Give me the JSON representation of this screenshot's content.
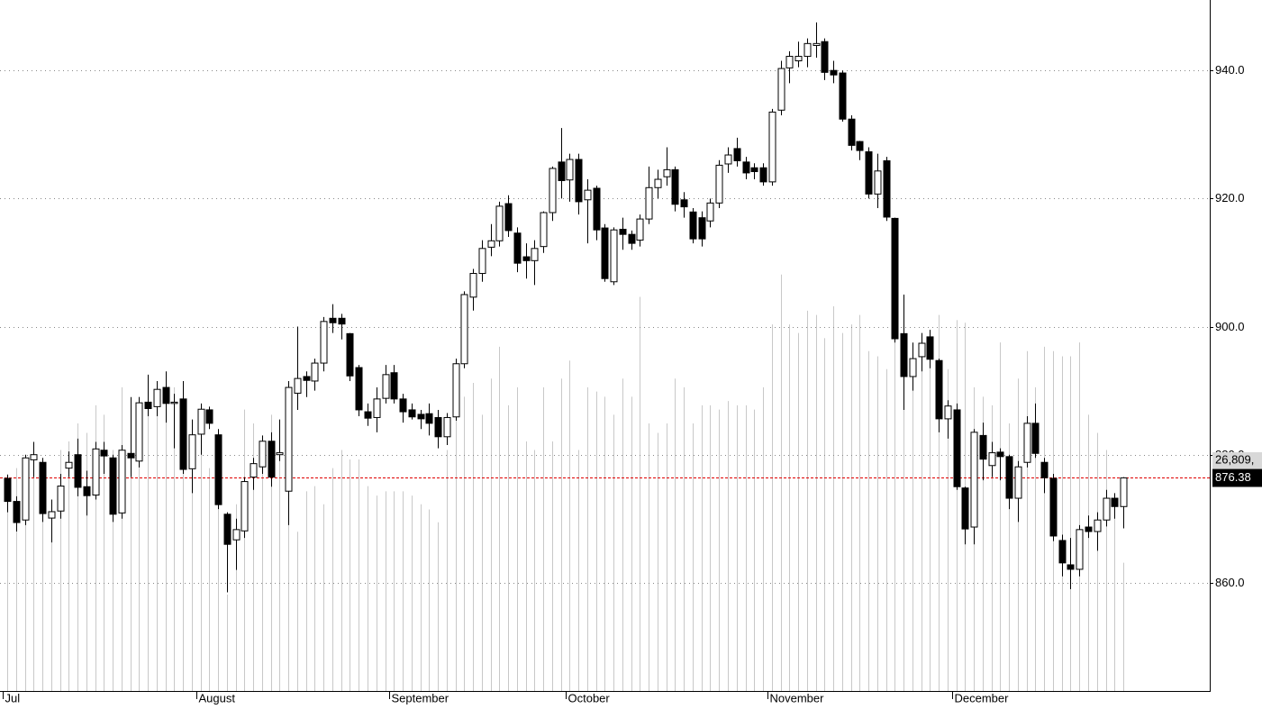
{
  "chart_data": {
    "type": "candlestick",
    "categories": [
      "Jul",
      null,
      null,
      null,
      null,
      null,
      null,
      null,
      null,
      null,
      null,
      null,
      null,
      null,
      null,
      null,
      null,
      null,
      null,
      null,
      null,
      null,
      "August",
      null,
      null,
      null,
      null,
      null,
      null,
      null,
      null,
      null,
      null,
      null,
      null,
      null,
      null,
      null,
      null,
      null,
      null,
      null,
      null,
      null,
      "September",
      null,
      null,
      null,
      null,
      null,
      null,
      null,
      null,
      null,
      null,
      null,
      null,
      null,
      null,
      null,
      null,
      null,
      null,
      null,
      "October",
      null,
      null,
      null,
      null,
      null,
      null,
      null,
      null,
      null,
      null,
      null,
      null,
      null,
      null,
      null,
      null,
      null,
      null,
      null,
      null,
      null,
      null,
      "November",
      null,
      null,
      null,
      null,
      null,
      null,
      null,
      null,
      null,
      null,
      null,
      null,
      null,
      null,
      null,
      null,
      null,
      null,
      null,
      null,
      "December",
      null,
      null,
      null,
      null,
      null,
      null,
      null,
      null,
      null,
      null,
      null,
      null,
      null,
      null,
      null,
      null,
      null,
      null,
      null
    ],
    "ohlc": [
      [
        876.3,
        876.9,
        871,
        872.7
      ],
      [
        872.7,
        873.5,
        868,
        869.4
      ],
      [
        869.8,
        880,
        869,
        879.5
      ],
      [
        879.2,
        882,
        876.5,
        880
      ],
      [
        878.8,
        879.5,
        869.5,
        870.8
      ],
      [
        870.1,
        873,
        866.3,
        871.1
      ],
      [
        871.2,
        877,
        870,
        875.1
      ],
      [
        877.9,
        880.5,
        876.5,
        878.8
      ],
      [
        880,
        882.5,
        873.5,
        874.9
      ],
      [
        875,
        877.5,
        870.5,
        873.6
      ],
      [
        873.7,
        882,
        873,
        880.9
      ],
      [
        880.7,
        882,
        877,
        879.8
      ],
      [
        879.5,
        880,
        869.5,
        870.7
      ],
      [
        870.9,
        881.5,
        870,
        880.7
      ],
      [
        880.2,
        889,
        876.5,
        879.5
      ],
      [
        879,
        889,
        878,
        888.1
      ],
      [
        888.2,
        892.5,
        886,
        887.2
      ],
      [
        887.5,
        891.5,
        886,
        890.2
      ],
      [
        890.5,
        893,
        885,
        888
      ],
      [
        888,
        889.5,
        881,
        888.2
      ],
      [
        888.7,
        891.5,
        877,
        877.7
      ],
      [
        877.8,
        885.5,
        874,
        883.1
      ],
      [
        883.2,
        888,
        880,
        887.1
      ],
      [
        887,
        887.5,
        884,
        884.9
      ],
      [
        883.1,
        884,
        871.5,
        872.2
      ],
      [
        870.7,
        871,
        858.5,
        866
      ],
      [
        866.7,
        870,
        862,
        868.3
      ],
      [
        868.1,
        876.5,
        867,
        875.8
      ],
      [
        876.5,
        879.5,
        874.5,
        878.6
      ],
      [
        878.1,
        883,
        877,
        882.1
      ],
      [
        882.1,
        883.5,
        875,
        876.5
      ],
      [
        880,
        885.5,
        879,
        880.3
      ],
      [
        874.3,
        891.5,
        869,
        890.5
      ],
      [
        889.6,
        900,
        887,
        891.9
      ],
      [
        892.2,
        893,
        889,
        891.6
      ],
      [
        891.5,
        895,
        890,
        894.3
      ],
      [
        894.3,
        901.5,
        893,
        900.8
      ],
      [
        901.3,
        903.5,
        899,
        900.6
      ],
      [
        901.3,
        902,
        898,
        900.4
      ],
      [
        898.9,
        899,
        891.5,
        892.3
      ],
      [
        893.6,
        894,
        886,
        887
      ],
      [
        886.7,
        888,
        884.5,
        885.7
      ],
      [
        885.8,
        890.5,
        883.5,
        888.7
      ],
      [
        888.8,
        894,
        888,
        892.5
      ],
      [
        892.8,
        894,
        888,
        888.7
      ],
      [
        888.7,
        889.5,
        885,
        886.7
      ],
      [
        887,
        888,
        885.5,
        885.9
      ],
      [
        886.3,
        887,
        884,
        885.6
      ],
      [
        886.4,
        888,
        883,
        884.9
      ],
      [
        885.8,
        887,
        881,
        882.8
      ],
      [
        882.8,
        886.5,
        881.5,
        885.8
      ],
      [
        885.9,
        895,
        885.3,
        894.2
      ],
      [
        894.2,
        905.5,
        893.5,
        905
      ],
      [
        904.6,
        909,
        902.5,
        908.3
      ],
      [
        908.3,
        913.5,
        907,
        912.2
      ],
      [
        912.4,
        916,
        911,
        913.4
      ],
      [
        913.4,
        919.5,
        912.5,
        918.8
      ],
      [
        919.2,
        920.5,
        914,
        915
      ],
      [
        914.6,
        915.5,
        908.5,
        909.9
      ],
      [
        910.9,
        913,
        907.5,
        910.3
      ],
      [
        910.3,
        913.5,
        906.5,
        912.2
      ],
      [
        912.5,
        918,
        911.5,
        917.8
      ],
      [
        917.8,
        925,
        916.5,
        924.7
      ],
      [
        925.7,
        931,
        920,
        922.8
      ],
      [
        922.9,
        927,
        919.5,
        926.1
      ],
      [
        926.1,
        927,
        917.5,
        919.5
      ],
      [
        919.8,
        923,
        913,
        921.3
      ],
      [
        921.6,
        922,
        913.5,
        915.1
      ],
      [
        915.4,
        916,
        907,
        907.5
      ],
      [
        907,
        915.5,
        906.5,
        915.1
      ],
      [
        915.2,
        917,
        912,
        914.4
      ],
      [
        914.4,
        915,
        912,
        913
      ],
      [
        913.5,
        917.5,
        912.5,
        916.8
      ],
      [
        916.8,
        925,
        916,
        921.7
      ],
      [
        921.7,
        924.5,
        920,
        923
      ],
      [
        923.4,
        928,
        922,
        924.5
      ],
      [
        924.5,
        925,
        918,
        919.1
      ],
      [
        919.8,
        921,
        917,
        918.7
      ],
      [
        917.9,
        918.5,
        913,
        913.7
      ],
      [
        917,
        918,
        912.5,
        913.7
      ],
      [
        916.5,
        920,
        915.5,
        919.3
      ],
      [
        919.3,
        926,
        918.5,
        925.2
      ],
      [
        925.4,
        928,
        924,
        926.8
      ],
      [
        927.8,
        929.5,
        925,
        925.9
      ],
      [
        925.7,
        926.5,
        923,
        924
      ],
      [
        924.8,
        925.5,
        923,
        924.2
      ],
      [
        924.8,
        925.5,
        922,
        922.6
      ],
      [
        922.6,
        934,
        922,
        933.5
      ],
      [
        933.8,
        941.5,
        933,
        940.3
      ],
      [
        940.4,
        943,
        938,
        942.2
      ],
      [
        941.5,
        944.5,
        940.5,
        942.2
      ],
      [
        942.2,
        945,
        940.5,
        944.2
      ],
      [
        943.9,
        947.5,
        942,
        944.2
      ],
      [
        944.5,
        945,
        938.5,
        939.7
      ],
      [
        940,
        941.5,
        938,
        939.3
      ],
      [
        939.6,
        940,
        932,
        932.4
      ],
      [
        932.4,
        933,
        927.5,
        928.3
      ],
      [
        928.9,
        929,
        926,
        927.5
      ],
      [
        927.3,
        928,
        920,
        920.7
      ],
      [
        920.7,
        927,
        918.5,
        924.3
      ],
      [
        925.9,
        926.5,
        916.5,
        917.1
      ],
      [
        916.9,
        917,
        897.5,
        898.1
      ],
      [
        898.9,
        905,
        887,
        892.2
      ],
      [
        892.2,
        897.5,
        890,
        895
      ],
      [
        895.3,
        899,
        893,
        897.4
      ],
      [
        898.4,
        899.5,
        893.5,
        894.9
      ],
      [
        894.7,
        895,
        883.5,
        885.6
      ],
      [
        885.6,
        888.5,
        882.5,
        887.6
      ],
      [
        887,
        888,
        874.5,
        875
      ],
      [
        874.8,
        875,
        866,
        868.4
      ],
      [
        868.7,
        884,
        866,
        883.5
      ],
      [
        883,
        885,
        876,
        879.3
      ],
      [
        878.3,
        882,
        876.5,
        880.3
      ],
      [
        880.4,
        881,
        876,
        879.7
      ],
      [
        879.7,
        880,
        871.5,
        873.2
      ],
      [
        873.2,
        879,
        869.5,
        878.1
      ],
      [
        878.8,
        886,
        878,
        884.9
      ],
      [
        884.9,
        888,
        879.5,
        880.2
      ],
      [
        878.8,
        879.5,
        874,
        876.4
      ],
      [
        876.3,
        877,
        866.5,
        867.3
      ],
      [
        866.6,
        867.5,
        861,
        863.1
      ],
      [
        862.8,
        867,
        859,
        862.1
      ],
      [
        862.1,
        869,
        861,
        868.3
      ],
      [
        868.7,
        870.5,
        867,
        868
      ],
      [
        868,
        871,
        865,
        869.8
      ],
      [
        869.8,
        874.5,
        868.8,
        873.2
      ],
      [
        873.2,
        874,
        870,
        871.9
      ],
      [
        871.9,
        876.5,
        868.5,
        876.38
      ]
    ],
    "volume": [
      24.8,
      25.9,
      25.3,
      26.9,
      25.9,
      21.7,
      28.0,
      29.0,
      31.1,
      30.0,
      33.2,
      32.1,
      28.0,
      35.3,
      31.1,
      34.2,
      36.3,
      35.8,
      34.2,
      35.3,
      28.0,
      30.0,
      31.1,
      25.9,
      24.8,
      11.2,
      21.7,
      32.7,
      31.1,
      25.9,
      32.1,
      28.0,
      25.9,
      18.5,
      23.2,
      23.8,
      21.7,
      25.9,
      28.0,
      26.9,
      26.9,
      23.8,
      22.7,
      23.2,
      23.2,
      23.2,
      22.7,
      21.7,
      21.1,
      19.6,
      28.0,
      33.2,
      34.2,
      35.8,
      32.1,
      36.3,
      40.0,
      33.2,
      35.3,
      29.0,
      28.0,
      35.3,
      29.0,
      36.3,
      38.4,
      28.0,
      35.3,
      34.8,
      34.2,
      32.1,
      36.3,
      34.2,
      45.8,
      31.1,
      30.0,
      31.1,
      36.3,
      35.3,
      31.1,
      33.2,
      33.2,
      32.7,
      33.7,
      33.2,
      33.2,
      32.7,
      35.3,
      42.6,
      48.4,
      42.6,
      41.6,
      44.2,
      43.7,
      41.0,
      44.7,
      41.6,
      42.6,
      43.7,
      39.5,
      38.9,
      37.4,
      41.6,
      36.9,
      36.3,
      38.4,
      41.6,
      43.7,
      37.4,
      43.1,
      42.8,
      35.3,
      34.2,
      33.2,
      40.5,
      31.1,
      36.3,
      39.5,
      35.3,
      40.0,
      39.5,
      38.9,
      38.9,
      40.5,
      32.1,
      30.0,
      28.0,
      21.7,
      14.9
    ],
    "ylim": [
      843.1,
      951.0
    ],
    "y2lim": [
      0,
      80.3
    ],
    "yticks": [
      {
        "value": 860,
        "label": "860.0"
      },
      {
        "value": 880,
        "label": "880.0"
      },
      {
        "value": 900,
        "label": "900.0"
      },
      {
        "value": 920,
        "label": "920.0"
      },
      {
        "value": 940,
        "label": "940.0"
      }
    ],
    "last_price": 876.38,
    "volume_label": "26,809,",
    "grid": true,
    "up_color": "#ffffff",
    "down_color": "#000000",
    "volume_color": "#c8c8c8",
    "last_price_color": "#e00000"
  }
}
